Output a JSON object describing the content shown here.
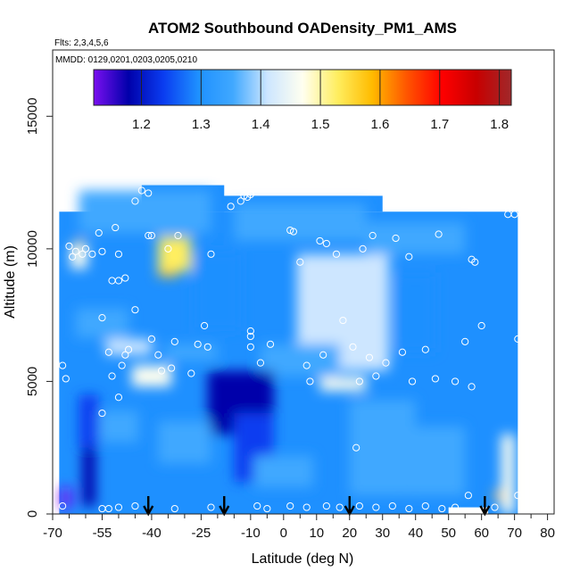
{
  "chart_data": {
    "type": "heatmap",
    "title": "ATOM2 Southbound OADensity_PM1_AMS",
    "flights_note": "Flts: 2,3,4,5,6",
    "dates_note": "MMDD: 0129,0201,0203,0205,0210",
    "xlabel": "Latitude (deg N)",
    "ylabel": "Altitude (m)",
    "xlim": [
      -70,
      82
    ],
    "ylim": [
      0,
      17500
    ],
    "x_ticks": [
      -70,
      -55,
      -40,
      -25,
      -10,
      0,
      10,
      20,
      30,
      40,
      50,
      60,
      70,
      80
    ],
    "x_minor_ticks": [
      -65,
      -60,
      -50,
      -45,
      -35,
      -30,
      -20,
      -15,
      -5,
      5,
      15,
      25,
      35,
      45,
      55,
      65,
      75
    ],
    "y_ticks": [
      0,
      5000,
      10000,
      15000
    ],
    "colorbar": {
      "range": [
        1.12,
        1.82
      ],
      "ticks": [
        1.2,
        1.3,
        1.4,
        1.5,
        1.6,
        1.7,
        1.8
      ],
      "colors": [
        "#7a0ff0",
        "#0000aa",
        "#0a3cf0",
        "#1e90ff",
        "#40a8ff",
        "#cde6ff",
        "#fffff0",
        "#ffee60",
        "#ffbb00",
        "#ff5500",
        "#ff0000",
        "#c80000",
        "#a0282a"
      ]
    },
    "arrows_latitude": [
      -41,
      -18,
      20,
      61
    ],
    "background_value": 1.3,
    "patches": [
      {
        "lat": -42,
        "alt": 11400,
        "value": 1.34,
        "w": 40,
        "h": 1600
      },
      {
        "lat": 5,
        "alt": 11000,
        "value": 1.35,
        "w": 40,
        "h": 1400
      },
      {
        "lat": 40,
        "alt": 10400,
        "value": 1.37,
        "w": 30,
        "h": 1200
      },
      {
        "lat": -35,
        "alt": 9400,
        "value": 1.6,
        "w": 6,
        "h": 900
      },
      {
        "lat": -33,
        "alt": 9800,
        "value": 1.5,
        "w": 10,
        "h": 1300
      },
      {
        "lat": -62,
        "alt": 10000,
        "value": 1.58,
        "w": 3,
        "h": 600
      },
      {
        "lat": -62,
        "alt": 9700,
        "value": 1.45,
        "w": 5,
        "h": 900
      },
      {
        "lat": 18,
        "alt": 7400,
        "value": 1.58,
        "w": 6,
        "h": 1000
      },
      {
        "lat": 18,
        "alt": 7500,
        "value": 1.48,
        "w": 15,
        "h": 2600
      },
      {
        "lat": 18,
        "alt": 7600,
        "value": 1.4,
        "w": 28,
        "h": 4400
      },
      {
        "lat": 18,
        "alt": 4900,
        "value": 1.45,
        "w": 14,
        "h": 500
      },
      {
        "lat": -40,
        "alt": 5100,
        "value": 1.58,
        "w": 5,
        "h": 500
      },
      {
        "lat": -40,
        "alt": 5200,
        "value": 1.45,
        "w": 12,
        "h": 800
      },
      {
        "lat": -55,
        "alt": 7200,
        "value": 1.36,
        "w": 16,
        "h": 1100
      },
      {
        "lat": -47,
        "alt": 6300,
        "value": 1.4,
        "w": 14,
        "h": 600
      },
      {
        "lat": -28,
        "alt": 6100,
        "value": 1.38,
        "w": 16,
        "h": 600
      },
      {
        "lat": 5,
        "alt": 5800,
        "value": 1.36,
        "w": 24,
        "h": 1200
      },
      {
        "lat": -13,
        "alt": 4200,
        "value": 1.2,
        "w": 20,
        "h": 2400
      },
      {
        "lat": -9,
        "alt": 2500,
        "value": 1.24,
        "w": 12,
        "h": 2600
      },
      {
        "lat": -10,
        "alt": 4800,
        "value": 1.16,
        "w": 10,
        "h": 1200
      },
      {
        "lat": -59,
        "alt": 1900,
        "value": 1.18,
        "w": 4,
        "h": 3200
      },
      {
        "lat": -66,
        "alt": 600,
        "value": 1.12,
        "w": 3,
        "h": 800
      },
      {
        "lat": -59,
        "alt": 3500,
        "value": 1.24,
        "w": 6,
        "h": 2000
      },
      {
        "lat": 30,
        "alt": 2500,
        "value": 1.36,
        "w": 20,
        "h": 3600
      },
      {
        "lat": 45,
        "alt": 2000,
        "value": 1.35,
        "w": 20,
        "h": 2600
      },
      {
        "lat": 68,
        "alt": 1500,
        "value": 1.48,
        "w": 4,
        "h": 3000
      },
      {
        "lat": 65,
        "alt": 700,
        "value": 1.6,
        "w": 2,
        "h": 400
      },
      {
        "lat": -30,
        "alt": 2700,
        "value": 1.36,
        "w": 16,
        "h": 1600
      },
      {
        "lat": -50,
        "alt": 3300,
        "value": 1.33,
        "w": 12,
        "h": 1200
      },
      {
        "lat": 0,
        "alt": 1600,
        "value": 1.33,
        "w": 18,
        "h": 1200
      },
      {
        "lat": 40,
        "alt": 7600,
        "value": 1.27,
        "w": 12,
        "h": 3000
      },
      {
        "lat": -20,
        "alt": 8400,
        "value": 1.28,
        "w": 14,
        "h": 3000
      }
    ],
    "points": [
      {
        "lat": -43,
        "alt": 12200
      },
      {
        "lat": -45,
        "alt": 11800
      },
      {
        "lat": -41,
        "alt": 12100
      },
      {
        "lat": -16,
        "alt": 11600
      },
      {
        "lat": -13,
        "alt": 11800
      },
      {
        "lat": -12,
        "alt": 12000
      },
      {
        "lat": -11,
        "alt": 11950
      },
      {
        "lat": -10,
        "alt": 12050
      },
      {
        "lat": -56,
        "alt": 10600
      },
      {
        "lat": -51,
        "alt": 10800
      },
      {
        "lat": -41,
        "alt": 10500
      },
      {
        "lat": -40,
        "alt": 10500
      },
      {
        "lat": -32,
        "alt": 10500
      },
      {
        "lat": 2,
        "alt": 10700
      },
      {
        "lat": 3,
        "alt": 10650
      },
      {
        "lat": 11,
        "alt": 10300
      },
      {
        "lat": 13,
        "alt": 10200
      },
      {
        "lat": 27,
        "alt": 10500
      },
      {
        "lat": 34,
        "alt": 10400
      },
      {
        "lat": 47,
        "alt": 10550
      },
      {
        "lat": 68,
        "alt": 11300
      },
      {
        "lat": 70,
        "alt": 11300
      },
      {
        "lat": -65,
        "alt": 10100
      },
      {
        "lat": -63,
        "alt": 9900
      },
      {
        "lat": -64,
        "alt": 9700
      },
      {
        "lat": -60,
        "alt": 10000
      },
      {
        "lat": -61,
        "alt": 9800
      },
      {
        "lat": -58,
        "alt": 9800
      },
      {
        "lat": -55,
        "alt": 9900
      },
      {
        "lat": -50,
        "alt": 9800
      },
      {
        "lat": -35,
        "alt": 10000
      },
      {
        "lat": -22,
        "alt": 9800
      },
      {
        "lat": 5,
        "alt": 9500
      },
      {
        "lat": 16,
        "alt": 9800
      },
      {
        "lat": 24,
        "alt": 10000
      },
      {
        "lat": 38,
        "alt": 9700
      },
      {
        "lat": 57,
        "alt": 9600
      },
      {
        "lat": 58,
        "alt": 9500
      },
      {
        "lat": -52,
        "alt": 8800
      },
      {
        "lat": -50,
        "alt": 8800
      },
      {
        "lat": -48,
        "alt": 8900
      },
      {
        "lat": -45,
        "alt": 7700
      },
      {
        "lat": -55,
        "alt": 7400
      },
      {
        "lat": 18,
        "alt": 7300
      },
      {
        "lat": -24,
        "alt": 7100
      },
      {
        "lat": -10,
        "alt": 6900
      },
      {
        "lat": -10,
        "alt": 6700
      },
      {
        "lat": 60,
        "alt": 7100
      },
      {
        "lat": 71,
        "alt": 6600
      },
      {
        "lat": -47,
        "alt": 6200
      },
      {
        "lat": -53,
        "alt": 6100
      },
      {
        "lat": -48,
        "alt": 6000
      },
      {
        "lat": -40,
        "alt": 6600
      },
      {
        "lat": -38,
        "alt": 6000
      },
      {
        "lat": -33,
        "alt": 6500
      },
      {
        "lat": -26,
        "alt": 6400
      },
      {
        "lat": -23,
        "alt": 6300
      },
      {
        "lat": -10,
        "alt": 6300
      },
      {
        "lat": -4,
        "alt": 6400
      },
      {
        "lat": 12,
        "alt": 6000
      },
      {
        "lat": 21,
        "alt": 6300
      },
      {
        "lat": 26,
        "alt": 5900
      },
      {
        "lat": 31,
        "alt": 5700
      },
      {
        "lat": 36,
        "alt": 6100
      },
      {
        "lat": 43,
        "alt": 6200
      },
      {
        "lat": 55,
        "alt": 6500
      },
      {
        "lat": -69,
        "alt": 5700
      },
      {
        "lat": -67,
        "alt": 5600
      },
      {
        "lat": -49,
        "alt": 5600
      },
      {
        "lat": -37,
        "alt": 5400
      },
      {
        "lat": -34,
        "alt": 5500
      },
      {
        "lat": -28,
        "alt": 5300
      },
      {
        "lat": -7,
        "alt": 5700
      },
      {
        "lat": 7,
        "alt": 5600
      },
      {
        "lat": 23,
        "alt": 5000
      },
      {
        "lat": 28,
        "alt": 5200
      },
      {
        "lat": 39,
        "alt": 5000
      },
      {
        "lat": 46,
        "alt": 5100
      },
      {
        "lat": 52,
        "alt": 5000
      },
      {
        "lat": 57,
        "alt": 4800
      },
      {
        "lat": -66,
        "alt": 5100
      },
      {
        "lat": -52,
        "alt": 5200
      },
      {
        "lat": -50,
        "alt": 4400
      },
      {
        "lat": -55,
        "alt": 3800
      },
      {
        "lat": 8,
        "alt": 5000
      },
      {
        "lat": 22,
        "alt": 2500
      },
      {
        "lat": 56,
        "alt": 700
      },
      {
        "lat": -67,
        "alt": 300
      },
      {
        "lat": -55,
        "alt": 200
      },
      {
        "lat": -53,
        "alt": 200
      },
      {
        "lat": -50,
        "alt": 250
      },
      {
        "lat": -45,
        "alt": 300
      },
      {
        "lat": -33,
        "alt": 200
      },
      {
        "lat": -22,
        "alt": 250
      },
      {
        "lat": -8,
        "alt": 300
      },
      {
        "lat": -5,
        "alt": 200
      },
      {
        "lat": 2,
        "alt": 300
      },
      {
        "lat": 7,
        "alt": 250
      },
      {
        "lat": 13,
        "alt": 300
      },
      {
        "lat": 17,
        "alt": 250
      },
      {
        "lat": 23,
        "alt": 300
      },
      {
        "lat": 28,
        "alt": 250
      },
      {
        "lat": 33,
        "alt": 300
      },
      {
        "lat": 38,
        "alt": 200
      },
      {
        "lat": 43,
        "alt": 300
      },
      {
        "lat": 48,
        "alt": 200
      },
      {
        "lat": 52,
        "alt": 250
      },
      {
        "lat": 64,
        "alt": 250
      },
      {
        "lat": 71,
        "alt": 700
      }
    ]
  }
}
